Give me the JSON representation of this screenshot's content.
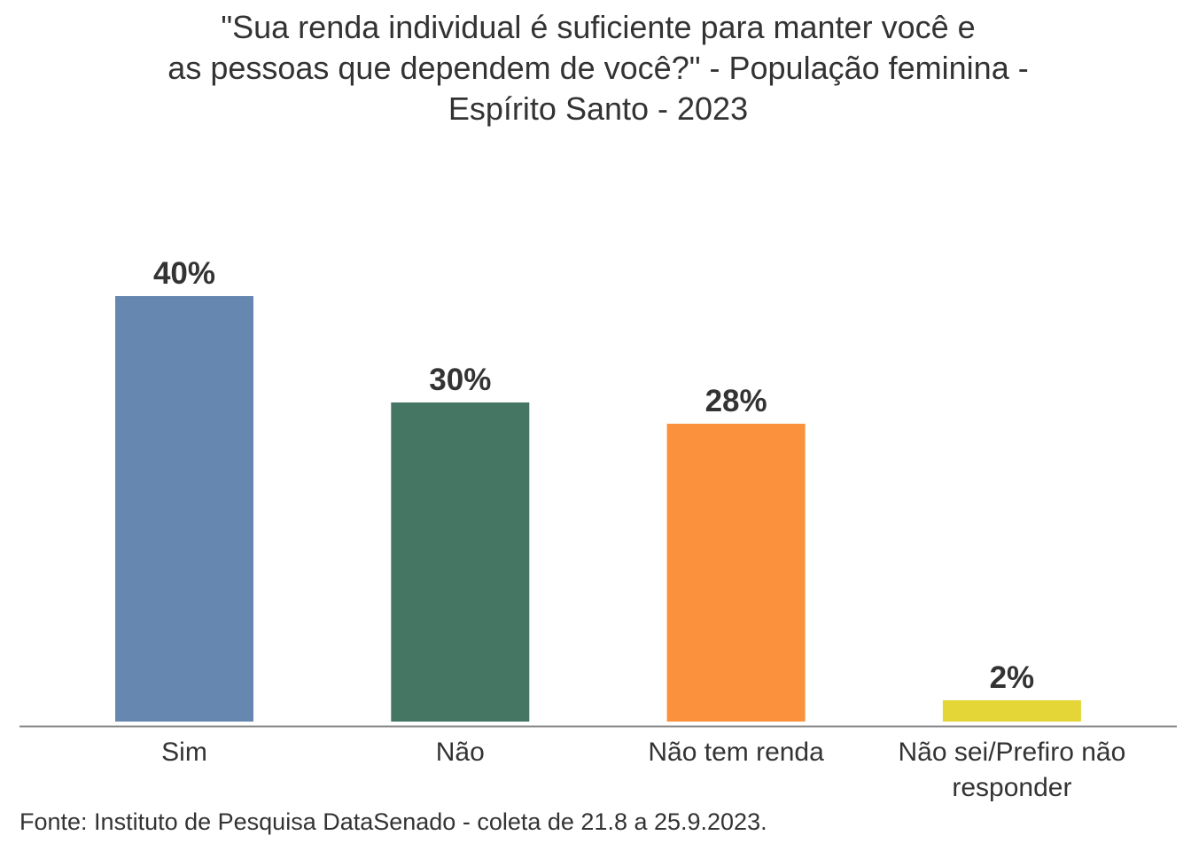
{
  "chart_data": {
    "type": "bar",
    "title_lines": [
      "\"Sua renda individual é suficiente para manter você e",
      "as pessoas que dependem de você?\" - População feminina -",
      "Espírito Santo - 2023"
    ],
    "categories": [
      "Sim",
      "Não",
      "Não tem renda",
      "Não sei/Prefiro não responder"
    ],
    "category_label_lines": [
      [
        "Sim"
      ],
      [
        "Não"
      ],
      [
        "Não tem renda"
      ],
      [
        "Não sei/Prefiro não",
        "responder"
      ]
    ],
    "values": [
      40,
      30,
      28,
      2
    ],
    "data_labels": [
      "40%",
      "30%",
      "28%",
      "2%"
    ],
    "colors": [
      "#6688B0",
      "#447663",
      "#FB913C",
      "#E5D637"
    ],
    "xlabel": "",
    "ylabel": "",
    "ylim": [
      0,
      40
    ],
    "grid": false,
    "legend": "none"
  },
  "footer": "Fonte: Instituto de Pesquisa DataSenado - coleta de 21.8 a 25.9.2023."
}
